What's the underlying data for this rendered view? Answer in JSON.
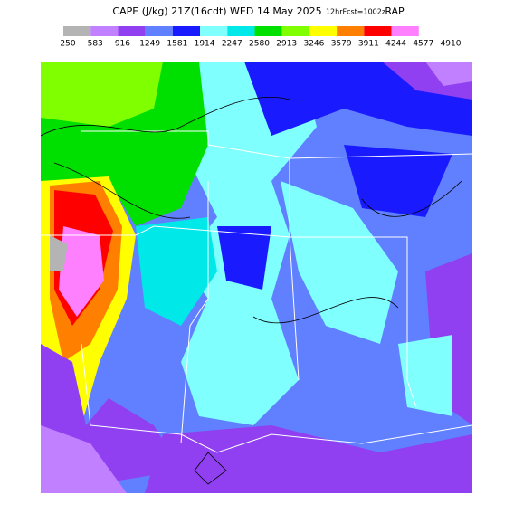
{
  "header": {
    "title": "CAPE (J/kg) 21Z(16cdt) WED 14 May 2025",
    "forecast": "12hrFcst=1002z",
    "model": "RAP"
  },
  "legend": {
    "colors": [
      "#b4b4b4",
      "#c080ff",
      "#9040f0",
      "#6080ff",
      "#1a1aff",
      "#80ffff",
      "#00e8e8",
      "#00e000",
      "#80ff00",
      "#ffff00",
      "#ff8000",
      "#ff0000",
      "#ff80ff"
    ],
    "labels": [
      250,
      583,
      916,
      1249,
      1581,
      1914,
      2247,
      2580,
      2913,
      3246,
      3579,
      3911,
      4244,
      4577,
      4910
    ]
  }
}
